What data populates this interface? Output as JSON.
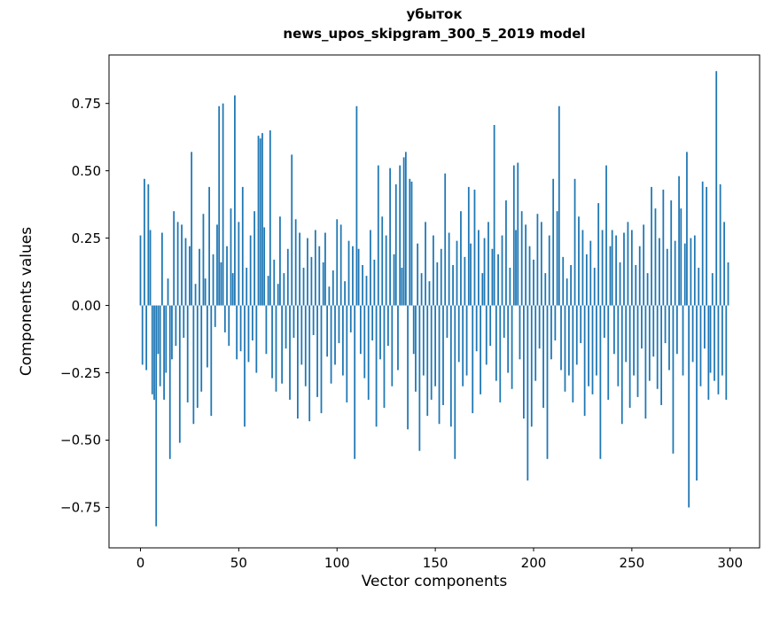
{
  "chart_data": {
    "type": "bar",
    "title_line1": "убыток",
    "title_line2": "news_upos_skipgram_300_5_2019 model",
    "xlabel": "Vector components",
    "ylabel": "Components values",
    "bar_color": "#1f77b4",
    "axis_color": "#000000",
    "xlim": [
      -16,
      315
    ],
    "ylim": [
      -0.9,
      0.93
    ],
    "xticks": [
      0,
      50,
      100,
      150,
      200,
      250,
      300
    ],
    "yticks": [
      -0.75,
      -0.5,
      -0.25,
      0.0,
      0.25,
      0.5,
      0.75
    ],
    "values": [
      0.26,
      -0.22,
      0.47,
      -0.24,
      0.45,
      0.28,
      -0.33,
      -0.35,
      -0.82,
      -0.18,
      -0.3,
      0.27,
      -0.35,
      -0.25,
      0.1,
      -0.57,
      -0.2,
      0.35,
      -0.15,
      0.31,
      -0.51,
      0.3,
      -0.12,
      0.25,
      -0.36,
      0.22,
      0.57,
      -0.44,
      0.08,
      -0.38,
      0.21,
      -0.32,
      0.34,
      0.1,
      -0.23,
      0.44,
      -0.41,
      0.19,
      -0.08,
      0.3,
      0.74,
      0.16,
      0.75,
      -0.1,
      0.22,
      -0.15,
      0.36,
      0.12,
      0.78,
      -0.2,
      0.31,
      -0.17,
      0.44,
      -0.45,
      0.14,
      -0.21,
      0.26,
      -0.13,
      0.35,
      -0.25,
      0.63,
      0.62,
      0.64,
      0.29,
      -0.18,
      0.11,
      0.65,
      -0.27,
      0.17,
      -0.32,
      0.08,
      0.33,
      -0.29,
      0.12,
      -0.16,
      0.21,
      -0.35,
      0.56,
      -0.12,
      0.32,
      -0.42,
      0.27,
      -0.22,
      0.14,
      -0.3,
      0.25,
      -0.43,
      0.18,
      -0.11,
      0.28,
      -0.34,
      0.22,
      -0.4,
      0.16,
      0.27,
      -0.19,
      0.07,
      -0.29,
      0.13,
      -0.22,
      0.32,
      -0.14,
      0.3,
      -0.26,
      0.09,
      -0.36,
      0.24,
      -0.1,
      0.22,
      -0.57,
      0.74,
      0.21,
      -0.18,
      0.15,
      -0.27,
      0.11,
      -0.35,
      0.28,
      -0.13,
      0.17,
      -0.45,
      0.52,
      -0.2,
      0.33,
      -0.38,
      0.26,
      -0.15,
      0.51,
      -0.3,
      0.19,
      0.45,
      -0.24,
      0.52,
      0.14,
      0.55,
      0.57,
      -0.46,
      0.47,
      0.46,
      -0.18,
      -0.32,
      0.23,
      -0.54,
      0.12,
      -0.26,
      0.31,
      -0.41,
      0.09,
      -0.35,
      0.26,
      -0.3,
      0.16,
      -0.44,
      0.21,
      -0.37,
      0.49,
      -0.12,
      0.27,
      -0.45,
      0.15,
      -0.57,
      0.24,
      -0.21,
      0.35,
      -0.3,
      0.18,
      -0.26,
      0.44,
      0.23,
      -0.4,
      0.43,
      -0.17,
      0.28,
      -0.33,
      0.12,
      0.25,
      -0.22,
      0.31,
      -0.15,
      0.21,
      0.67,
      -0.28,
      0.19,
      -0.36,
      0.26,
      -0.12,
      0.39,
      -0.25,
      0.14,
      -0.31,
      0.52,
      0.28,
      0.53,
      -0.2,
      0.35,
      -0.42,
      0.3,
      -0.65,
      0.22,
      -0.45,
      0.17,
      -0.28,
      0.34,
      -0.16,
      0.31,
      -0.38,
      0.12,
      -0.57,
      0.26,
      -0.2,
      0.47,
      -0.13,
      0.35,
      0.74,
      -0.24,
      0.18,
      -0.32,
      0.1,
      -0.26,
      0.15,
      -0.36,
      0.47,
      -0.22,
      0.33,
      -0.14,
      0.28,
      -0.41,
      0.19,
      -0.3,
      0.24,
      -0.33,
      0.14,
      -0.26,
      0.38,
      -0.57,
      0.28,
      -0.12,
      0.52,
      -0.35,
      0.22,
      0.28,
      -0.18,
      0.26,
      -0.3,
      0.16,
      -0.44,
      0.27,
      -0.21,
      0.31,
      -0.38,
      0.28,
      -0.26,
      0.15,
      -0.34,
      0.22,
      -0.16,
      0.3,
      -0.42,
      0.12,
      -0.28,
      0.44,
      -0.19,
      0.36,
      -0.31,
      0.25,
      -0.37,
      0.43,
      -0.14,
      0.21,
      -0.24,
      0.39,
      -0.55,
      0.24,
      -0.18,
      0.48,
      0.36,
      -0.26,
      0.23,
      0.57,
      -0.75,
      0.25,
      -0.21,
      0.26,
      -0.65,
      0.14,
      -0.3,
      0.46,
      -0.16,
      0.44,
      -0.35,
      -0.25,
      0.12,
      -0.28,
      0.87,
      -0.33,
      0.45,
      -0.26,
      0.31,
      -0.35,
      0.16
    ]
  }
}
